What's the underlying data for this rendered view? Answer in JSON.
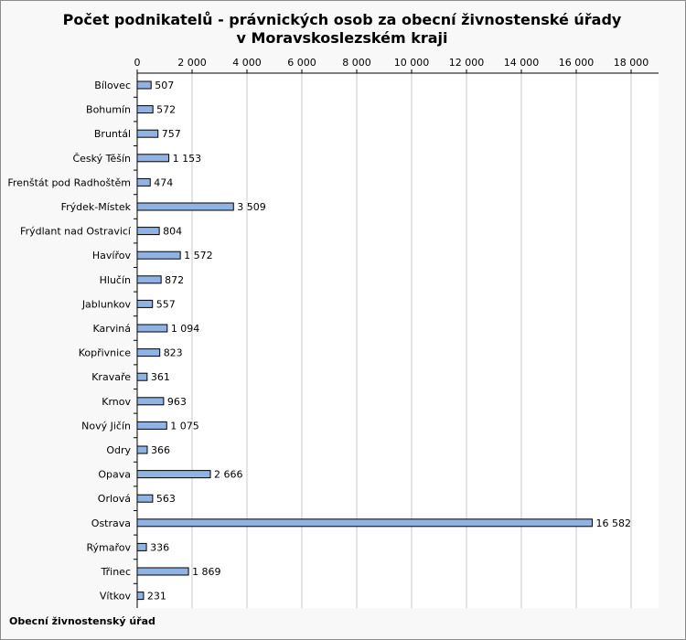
{
  "chart_data": {
    "type": "bar",
    "orientation": "horizontal",
    "title": "Počet podnikatelů - právnických osob za obecní živnostenské úřady v Moravskoslezském kraji",
    "title_lines": [
      "Počet podnikatelů - právnických osob za obecní živnostenské úřady",
      "v Moravskoslezském kraji"
    ],
    "footer_label": "Obecní živnostenský úřad",
    "categories": [
      "Bílovec",
      "Bohumín",
      "Bruntál",
      "Český Těšín",
      "Frenštát pod Radhoštěm",
      "Frýdek-Místek",
      "Frýdlant nad Ostravicí",
      "Havířov",
      "Hlučín",
      "Jablunkov",
      "Karviná",
      "Kopřivnice",
      "Kravaře",
      "Krnov",
      "Nový Jičín",
      "Odry",
      "Opava",
      "Orlová",
      "Ostrava",
      "Rýmařov",
      "Třinec",
      "Vítkov"
    ],
    "values": [
      507,
      572,
      757,
      1153,
      474,
      3509,
      804,
      1572,
      872,
      557,
      1094,
      823,
      361,
      963,
      1075,
      366,
      2666,
      563,
      16582,
      336,
      1869,
      231
    ],
    "value_labels": [
      "507",
      "572",
      "757",
      "1 153",
      "474",
      "3 509",
      "804",
      "1 572",
      "872",
      "557",
      "1 094",
      "823",
      "361",
      "963",
      "1 075",
      "366",
      "2 666",
      "563",
      "16 582",
      "336",
      "1 869",
      "231"
    ],
    "xlim": [
      0,
      19000
    ],
    "ticks": [
      0,
      2000,
      4000,
      6000,
      8000,
      10000,
      12000,
      14000,
      16000,
      18000
    ],
    "tick_labels": [
      "0",
      "2 000",
      "4 000",
      "6 000",
      "8 000",
      "10 000",
      "12 000",
      "14 000",
      "16 000",
      "18 000"
    ],
    "axis_position": "top",
    "grid": true,
    "legend": "none",
    "colors": {
      "bar_fill": "#8fb3e3",
      "bar_stroke": "#000000",
      "grid": "#c8c8c8",
      "plot_bg": "#ffffff",
      "outer_bg": "#f8f8f8"
    }
  }
}
